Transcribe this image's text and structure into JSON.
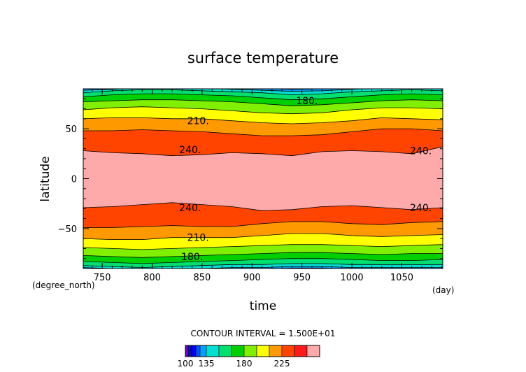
{
  "chart_data": {
    "type": "heatmap",
    "subtype": "filled-contour",
    "title": "surface temperature",
    "xlabel": "time",
    "ylabel": "latitude",
    "x_units": "(day)",
    "y_units": "(degree_north)",
    "xlim": [
      731,
      1091
    ],
    "ylim": [
      -90,
      90
    ],
    "x_ticks": [
      750,
      800,
      850,
      900,
      950,
      1000,
      1050
    ],
    "y_ticks": [
      -50,
      0,
      50
    ],
    "contour_interval_text": "CONTOUR INTERVAL = 1.500E+01",
    "contour_labels": [
      {
        "text": "180.",
        "x": 955,
        "y": 78
      },
      {
        "text": "210.",
        "x": 846,
        "y": 58
      },
      {
        "text": "240.",
        "x": 838,
        "y": 29
      },
      {
        "text": "240.",
        "x": 1069,
        "y": 28
      },
      {
        "text": "240.",
        "x": 838,
        "y": -29
      },
      {
        "text": "240.",
        "x": 1069,
        "y": -29
      },
      {
        "text": "210.",
        "x": 846,
        "y": -59
      },
      {
        "text": "180.",
        "x": 840,
        "y": -78
      }
    ],
    "colorbar": {
      "levels": [
        100,
        105,
        110,
        115,
        120,
        135,
        150,
        165,
        180,
        195,
        210,
        225,
        240,
        255
      ],
      "colors": [
        "#7b00c8",
        "#1010a0",
        "#0000ff",
        "#0050ff",
        "#00a0ff",
        "#00e0d0",
        "#00e070",
        "#00d000",
        "#80f000",
        "#ffff00",
        "#ff9900",
        "#ff4400",
        "#ff1a1a",
        "#ffaaaa"
      ],
      "tick_labels": [
        "100",
        "135",
        "180",
        "225"
      ],
      "tick_values": [
        100,
        135,
        180,
        225
      ]
    },
    "time_samples": [
      731,
      760,
      790,
      820,
      850,
      880,
      910,
      940,
      970,
      1000,
      1030,
      1060,
      1091
    ],
    "contours": [
      {
        "level": 240,
        "north": [
          28,
          26,
          25,
          23,
          24,
          26,
          25,
          23,
          27,
          28,
          27,
          25,
          32
        ],
        "south": [
          -29,
          -28,
          -26,
          -24,
          -26,
          -28,
          -32,
          -31,
          -28,
          -27,
          -29,
          -31,
          -29
        ]
      },
      {
        "level": 225,
        "north": [
          48,
          48,
          49,
          48,
          47,
          45,
          43,
          43,
          44,
          47,
          50,
          50,
          48
        ],
        "south": [
          -49,
          -49,
          -48,
          -47,
          -48,
          -48,
          -45,
          -43,
          -43,
          -45,
          -46,
          -44,
          -43
        ]
      },
      {
        "level": 210,
        "north": [
          60,
          61,
          61,
          60,
          60,
          58,
          56,
          55,
          56,
          58,
          61,
          60,
          59
        ],
        "south": [
          -60,
          -61,
          -61,
          -59,
          -59,
          -59,
          -57,
          -55,
          -55,
          -57,
          -58,
          -57,
          -56
        ]
      },
      {
        "level": 195,
        "north": [
          69,
          71,
          72,
          71,
          70,
          68,
          66,
          65,
          66,
          69,
          71,
          71,
          70
        ],
        "south": [
          -69,
          -70,
          -71,
          -70,
          -69,
          -68,
          -67,
          -66,
          -66,
          -67,
          -68,
          -67,
          -66
        ]
      },
      {
        "level": 180,
        "north": [
          77,
          78,
          79,
          79,
          78,
          77,
          75,
          73,
          74,
          76,
          78,
          79,
          78
        ],
        "south": [
          -77,
          -78,
          -79,
          -78,
          -77,
          -76,
          -75,
          -74,
          -74,
          -75,
          -76,
          -75,
          -75
        ]
      },
      {
        "level": 165,
        "north": [
          82,
          84,
          85,
          85,
          84,
          83,
          81,
          79,
          80,
          82,
          84,
          85,
          84
        ],
        "south": [
          -83,
          -84,
          -85,
          -84,
          -83,
          -82,
          -81,
          -80,
          -80,
          -81,
          -82,
          -82,
          -81
        ]
      },
      {
        "level": 150,
        "north": [
          86,
          88,
          89,
          89,
          88,
          87,
          86,
          84,
          85,
          87,
          88,
          89,
          88
        ],
        "south": [
          -87,
          -88,
          -89,
          -88,
          -87,
          -86,
          -86,
          -85,
          -85,
          -86,
          -86,
          -86,
          -86
        ]
      },
      {
        "level": 135,
        "north": [
          88.5,
          89.5,
          91,
          91,
          91,
          89.5,
          88.5,
          87.5,
          88,
          89.5,
          91,
          91,
          90
        ],
        "south": [
          -89,
          -90,
          -91,
          -91,
          -90,
          -89,
          -89,
          -88,
          -88,
          -89,
          -89,
          -89,
          -89
        ]
      },
      {
        "level": 120,
        "north": [
          90.5,
          91,
          91,
          91,
          91,
          91,
          90.5,
          89.5,
          90,
          91,
          91,
          91,
          91
        ],
        "south": [
          -90.5,
          -91,
          -91,
          -91,
          -91,
          -90.5,
          -90.5,
          -89.5,
          -89.5,
          -90.5,
          -91,
          -91,
          -91
        ]
      }
    ]
  }
}
